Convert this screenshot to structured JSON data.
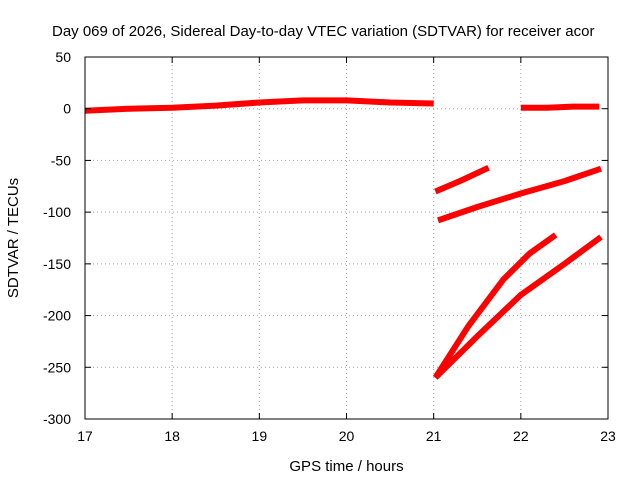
{
  "chart_data": {
    "type": "line",
    "title": "Day 069 of 2026, Sidereal Day-to-day VTEC variation (SDTVAR) for receiver acor",
    "xlabel": "GPS time / hours",
    "ylabel": "SDTVAR / TECUs",
    "xlim": [
      17,
      23
    ],
    "ylim": [
      -300,
      50
    ],
    "xticks": [
      "17",
      "18",
      "19",
      "20",
      "21",
      "22",
      "23"
    ],
    "yticks": [
      "50",
      "0",
      "-50",
      "-100",
      "-150",
      "-200",
      "-250",
      "-300"
    ],
    "grid": true,
    "legend": "none",
    "line_color": "#ff0000",
    "series": [
      {
        "x": [
          17.0,
          17.5,
          18.0,
          18.5,
          19.0,
          19.5,
          20.0,
          20.5,
          21.0
        ],
        "y": [
          -2,
          0,
          1,
          3,
          6,
          8,
          8,
          6,
          5
        ]
      },
      {
        "x": [
          22.0,
          22.3,
          22.6,
          22.9
        ],
        "y": [
          1,
          1,
          2,
          2
        ]
      },
      {
        "x": [
          21.02,
          21.3,
          21.63
        ],
        "y": [
          -80,
          -70,
          -57
        ]
      },
      {
        "x": [
          21.05,
          21.5,
          22.0,
          22.5,
          22.92
        ],
        "y": [
          -108,
          -95,
          -82,
          -70,
          -58
        ]
      },
      {
        "x": [
          21.02,
          21.4,
          21.8,
          22.1,
          22.4
        ],
        "y": [
          -260,
          -210,
          -165,
          -140,
          -122
        ]
      },
      {
        "x": [
          21.02,
          21.5,
          22.0,
          22.5,
          22.92
        ],
        "y": [
          -260,
          -220,
          -180,
          -150,
          -124
        ]
      }
    ]
  }
}
